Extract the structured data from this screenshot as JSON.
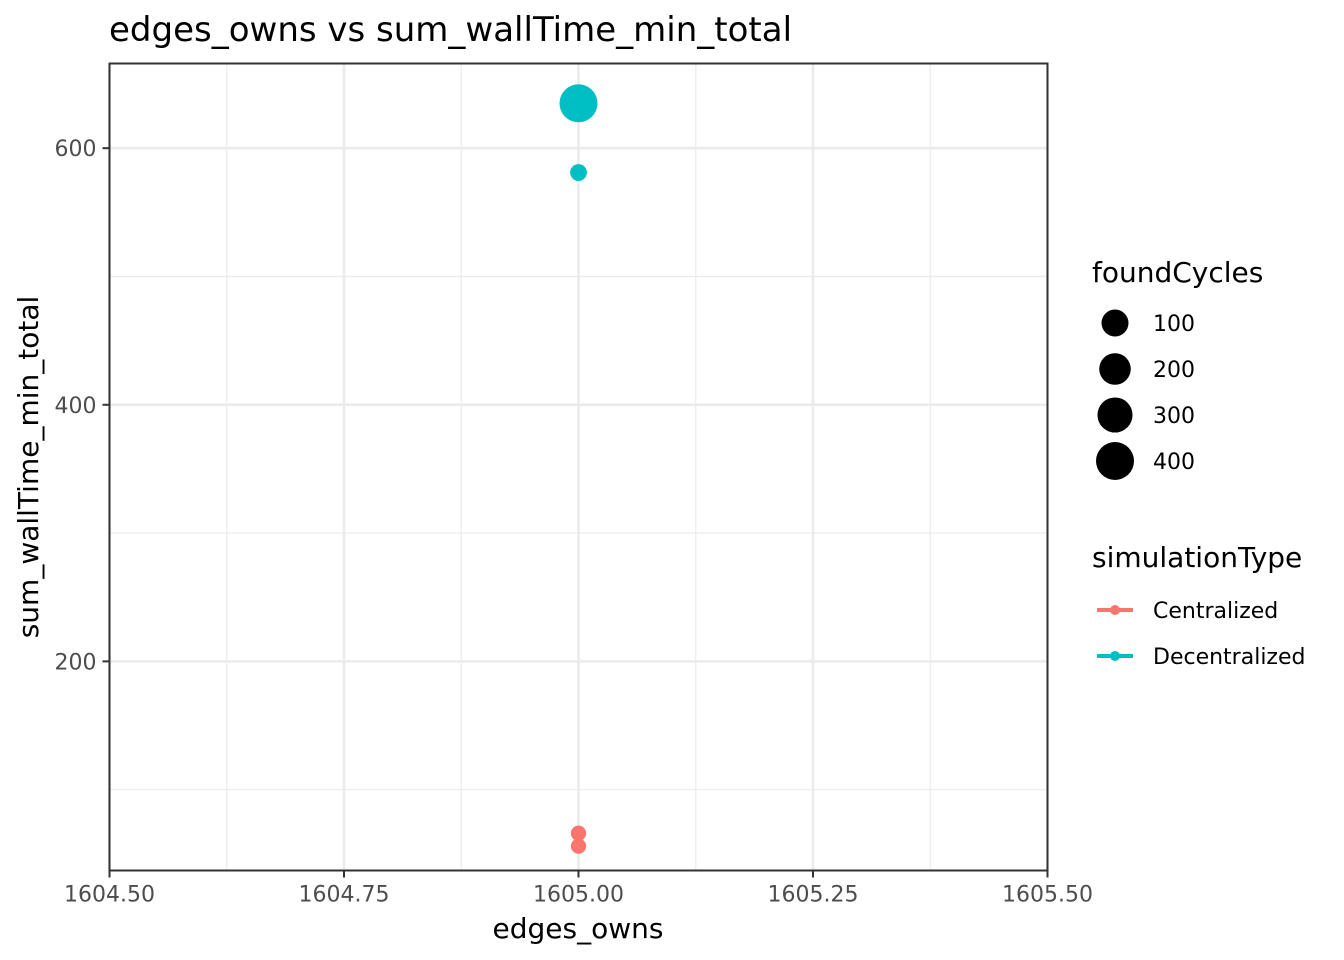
{
  "chart_data": {
    "type": "scatter",
    "title": "edges_owns  vs  sum_wallTime_min_total",
    "xlabel": "edges_owns",
    "ylabel": "sum_wallTime_min_total",
    "xlim": [
      1604.5,
      1605.5
    ],
    "ylim": [
      37,
      666
    ],
    "x_ticks": [
      1604.5,
      1604.75,
      1605.0,
      1605.25,
      1605.5
    ],
    "x_tick_labels": [
      "1604.50",
      "1604.75",
      "1605.00",
      "1605.25",
      "1605.50"
    ],
    "y_ticks": [
      200,
      400,
      600
    ],
    "y_tick_labels": [
      "200",
      "400",
      "600"
    ],
    "grid": true,
    "size_legend": {
      "title": "foundCycles",
      "entries": [
        {
          "label": "100",
          "value": 100
        },
        {
          "label": "200",
          "value": 200
        },
        {
          "label": "300",
          "value": 300
        },
        {
          "label": "400",
          "value": 400
        }
      ]
    },
    "color_legend": {
      "title": "simulationType",
      "placement": "right",
      "entries": [
        {
          "label": "Centralized",
          "color": "#F8766D"
        },
        {
          "label": "Decentralized",
          "color": "#00BFC4"
        }
      ]
    },
    "series": [
      {
        "name": "Centralized",
        "color": "#F8766D",
        "points": [
          {
            "x": 1605.0,
            "y": 66,
            "size": 15
          },
          {
            "x": 1605.0,
            "y": 56,
            "size": 15
          }
        ]
      },
      {
        "name": "Decentralized",
        "color": "#00BFC4",
        "points": [
          {
            "x": 1605.0,
            "y": 635,
            "size": 420
          },
          {
            "x": 1605.0,
            "y": 581,
            "size": 25
          }
        ]
      }
    ]
  }
}
